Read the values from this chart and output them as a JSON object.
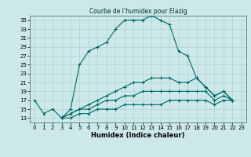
{
  "title": "Courbe de l'humidex pour Elazig",
  "xlabel": "Humidex (Indice chaleur)",
  "ylabel": "",
  "bg_color": "#cce8e8",
  "line_color": "#006666",
  "ylim": [
    12,
    36
  ],
  "xlim": [
    -0.5,
    23.5
  ],
  "yticks": [
    13,
    15,
    17,
    19,
    21,
    23,
    25,
    27,
    29,
    31,
    33,
    35
  ],
  "xticks": [
    0,
    1,
    2,
    3,
    4,
    5,
    6,
    7,
    8,
    9,
    10,
    11,
    12,
    13,
    14,
    15,
    16,
    17,
    18,
    19,
    20,
    21,
    22,
    23
  ],
  "series": [
    {
      "x": [
        0,
        1,
        2,
        3,
        4,
        5,
        6,
        7,
        8,
        9,
        10,
        11,
        12,
        13,
        14,
        15,
        16,
        17,
        18,
        19,
        20,
        21,
        22
      ],
      "y": [
        17,
        14,
        15,
        13,
        15,
        25,
        28,
        29,
        30,
        33,
        35,
        35,
        35,
        36,
        35,
        34,
        28,
        27,
        22,
        20,
        18,
        19,
        17
      ]
    },
    {
      "x": [
        3,
        4,
        5,
        6,
        7,
        8,
        9,
        10,
        11,
        12,
        13,
        14,
        15,
        16,
        17,
        18,
        19,
        20,
        21,
        22
      ],
      "y": [
        13,
        14,
        15,
        16,
        17,
        18,
        19,
        20,
        21,
        21,
        22,
        22,
        22,
        21,
        21,
        22,
        20,
        18,
        19,
        17
      ]
    },
    {
      "x": [
        3,
        4,
        5,
        6,
        7,
        8,
        9,
        10,
        11,
        12,
        13,
        14,
        15,
        16,
        17,
        18,
        19,
        20,
        21,
        22
      ],
      "y": [
        13,
        14,
        15,
        15,
        16,
        17,
        17,
        18,
        18,
        19,
        19,
        19,
        19,
        19,
        19,
        19,
        19,
        17,
        18,
        17
      ]
    },
    {
      "x": [
        3,
        4,
        5,
        6,
        7,
        8,
        9,
        10,
        11,
        12,
        13,
        14,
        15,
        16,
        17,
        18,
        19,
        20,
        21,
        22
      ],
      "y": [
        13,
        13,
        14,
        14,
        15,
        15,
        15,
        16,
        16,
        16,
        16,
        16,
        17,
        17,
        17,
        17,
        17,
        16,
        17,
        17
      ]
    }
  ]
}
